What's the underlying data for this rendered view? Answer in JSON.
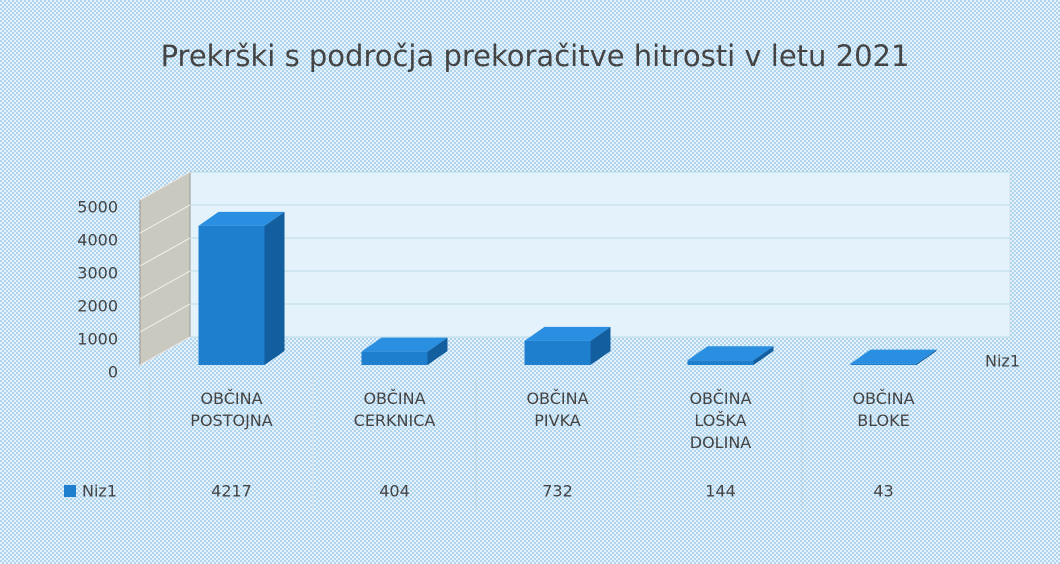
{
  "chart_data": {
    "type": "bar3d",
    "title": "Prekrški s področja prekoračitve hitrosti v letu 2021",
    "categories": [
      "OBČINA POSTOJNA",
      "OBČINA CERKNICA",
      "OBČINA PIVKA",
      "OBČINA LOŠKA DOLINA",
      "OBČINA BLOKE"
    ],
    "series": [
      {
        "name": "Niz1",
        "color": "#1f7fcf",
        "values": [
          4217,
          404,
          732,
          144,
          43
        ]
      }
    ],
    "ylim": [
      0,
      5000
    ],
    "yticks": [
      0,
      1000,
      2000,
      3000,
      4000,
      5000
    ],
    "grid": true
  }
}
